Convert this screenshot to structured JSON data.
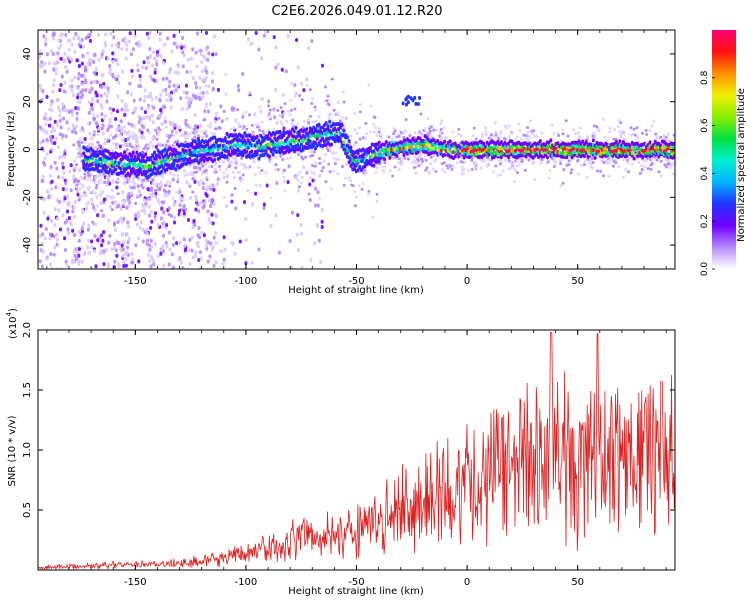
{
  "title": "C2E6.2026.049.01.12.R20",
  "chart_data": [
    {
      "type": "heatmap",
      "xlabel": "Height of straight line (km)",
      "ylabel": "Frequency (Hz)",
      "xlim": [
        -194,
        94
      ],
      "ylim": [
        -50,
        50
      ],
      "xticks": [
        -150,
        -100,
        -50,
        0,
        50
      ],
      "xtick_labels": [
        "-150",
        "-100",
        "-50",
        "0",
        "50"
      ],
      "yticks": [
        -40,
        -20,
        0,
        20,
        40
      ],
      "ytick_labels": [
        "-40",
        "-20",
        "0",
        "20",
        "40"
      ],
      "colorbar": {
        "label": "Normalized spectral amplitude",
        "range": [
          0,
          1
        ],
        "ticks": [
          0.0,
          0.2,
          0.4,
          0.6,
          0.8
        ],
        "tick_labels": [
          "0.0",
          "0.2",
          "0.4",
          "0.6",
          "0.8"
        ],
        "colors": [
          "#ffffff",
          "#b58aff",
          "#6f00ff",
          "#2233ff",
          "#00b4ff",
          "#00f0d0",
          "#00e040",
          "#8cee00",
          "#f0f000",
          "#ff9000",
          "#ff1010",
          "#ff0077"
        ]
      },
      "ridge": {
        "x": [
          -175,
          -165,
          -155,
          -145,
          -135,
          -125,
          -115,
          -105,
          -95,
          -85,
          -75,
          -65,
          -58,
          -52,
          -48,
          -40,
          -30,
          -20,
          -10,
          0,
          20,
          40,
          60,
          80,
          94
        ],
        "y": [
          -4,
          -5,
          -6,
          -7,
          -4,
          -1,
          0,
          2,
          1,
          3,
          4,
          6,
          7,
          -5,
          -4,
          -1,
          1,
          2,
          0,
          0,
          0,
          0,
          0,
          0,
          0
        ]
      },
      "grid": false
    },
    {
      "type": "line",
      "xlabel": "Height of straight line (km)",
      "ylabel": "SNR (10 * v/v)",
      "y_multiplier_label": "(x10",
      "y_multiplier_exp": "4",
      "y_multiplier_close": ")",
      "xlim": [
        -194,
        94
      ],
      "ylim": [
        0,
        2.0
      ],
      "xticks": [
        -150,
        -100,
        -50,
        0,
        50
      ],
      "xtick_labels": [
        "-150",
        "-100",
        "-50",
        "0",
        "50"
      ],
      "yticks": [
        0.5,
        1.0,
        1.5,
        2.0
      ],
      "ytick_labels": [
        "0.5",
        "1.0",
        "1.5",
        "2.0"
      ],
      "series_color": "#e02020",
      "envelope": {
        "x": [
          -194,
          -170,
          -140,
          -120,
          -100,
          -80,
          -60,
          -50,
          -40,
          -30,
          -20,
          -10,
          0,
          10,
          20,
          30,
          40,
          50,
          60,
          70,
          80,
          94
        ],
        "y": [
          0.02,
          0.04,
          0.05,
          0.08,
          0.15,
          0.25,
          0.35,
          0.38,
          0.42,
          0.55,
          0.6,
          0.7,
          0.8,
          0.9,
          1.0,
          1.05,
          1.05,
          1.0,
          1.0,
          1.0,
          1.05,
          1.15
        ]
      },
      "peaks": [
        {
          "x": 38,
          "y": 1.98
        },
        {
          "x": 59,
          "y": 1.97
        },
        {
          "x": 88,
          "y": 1.57
        }
      ],
      "grid": false
    }
  ]
}
